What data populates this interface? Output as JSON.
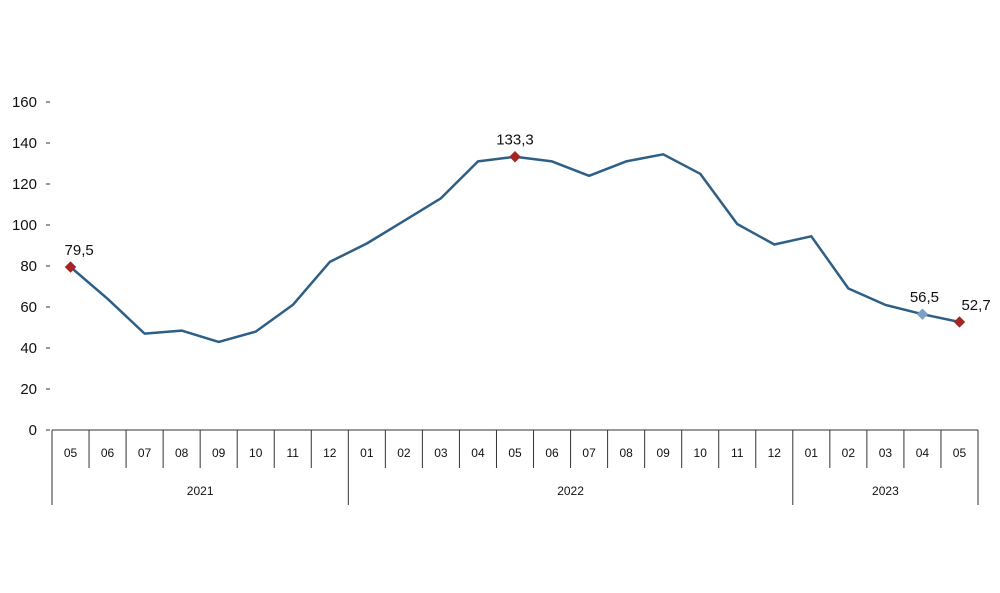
{
  "chart_data": {
    "type": "line",
    "title": "",
    "xlabel": "",
    "ylabel": "",
    "ylim": [
      0,
      160
    ],
    "yticks": [
      0,
      20,
      40,
      60,
      80,
      100,
      120,
      140,
      160
    ],
    "grid": false,
    "categories": [
      "05",
      "06",
      "07",
      "08",
      "09",
      "10",
      "11",
      "12",
      "01",
      "02",
      "03",
      "04",
      "05",
      "06",
      "07",
      "08",
      "09",
      "10",
      "11",
      "12",
      "01",
      "02",
      "03",
      "04",
      "05"
    ],
    "years": [
      {
        "label": "2021",
        "start": 0,
        "end": 7
      },
      {
        "label": "2022",
        "start": 8,
        "end": 19
      },
      {
        "label": "2023",
        "start": 20,
        "end": 24
      }
    ],
    "series": [
      {
        "values": [
          79.5,
          64,
          47,
          48.5,
          43,
          48,
          61,
          82,
          91,
          102,
          113,
          131,
          133.3,
          131,
          124,
          131,
          134.5,
          125,
          100.5,
          90.5,
          94.5,
          69,
          61,
          56.5,
          52.7
        ],
        "color": "#2e5f86"
      }
    ],
    "annotations": [
      {
        "index": 0,
        "text": "79,5",
        "marker_color": "#a52424"
      },
      {
        "index": 12,
        "text": "133,3",
        "marker_color": "#a52424"
      },
      {
        "index": 23,
        "text": "56,5",
        "marker_color": "#7aa0c8"
      },
      {
        "index": 24,
        "text": "52,7",
        "marker_color": "#a52424"
      }
    ]
  }
}
